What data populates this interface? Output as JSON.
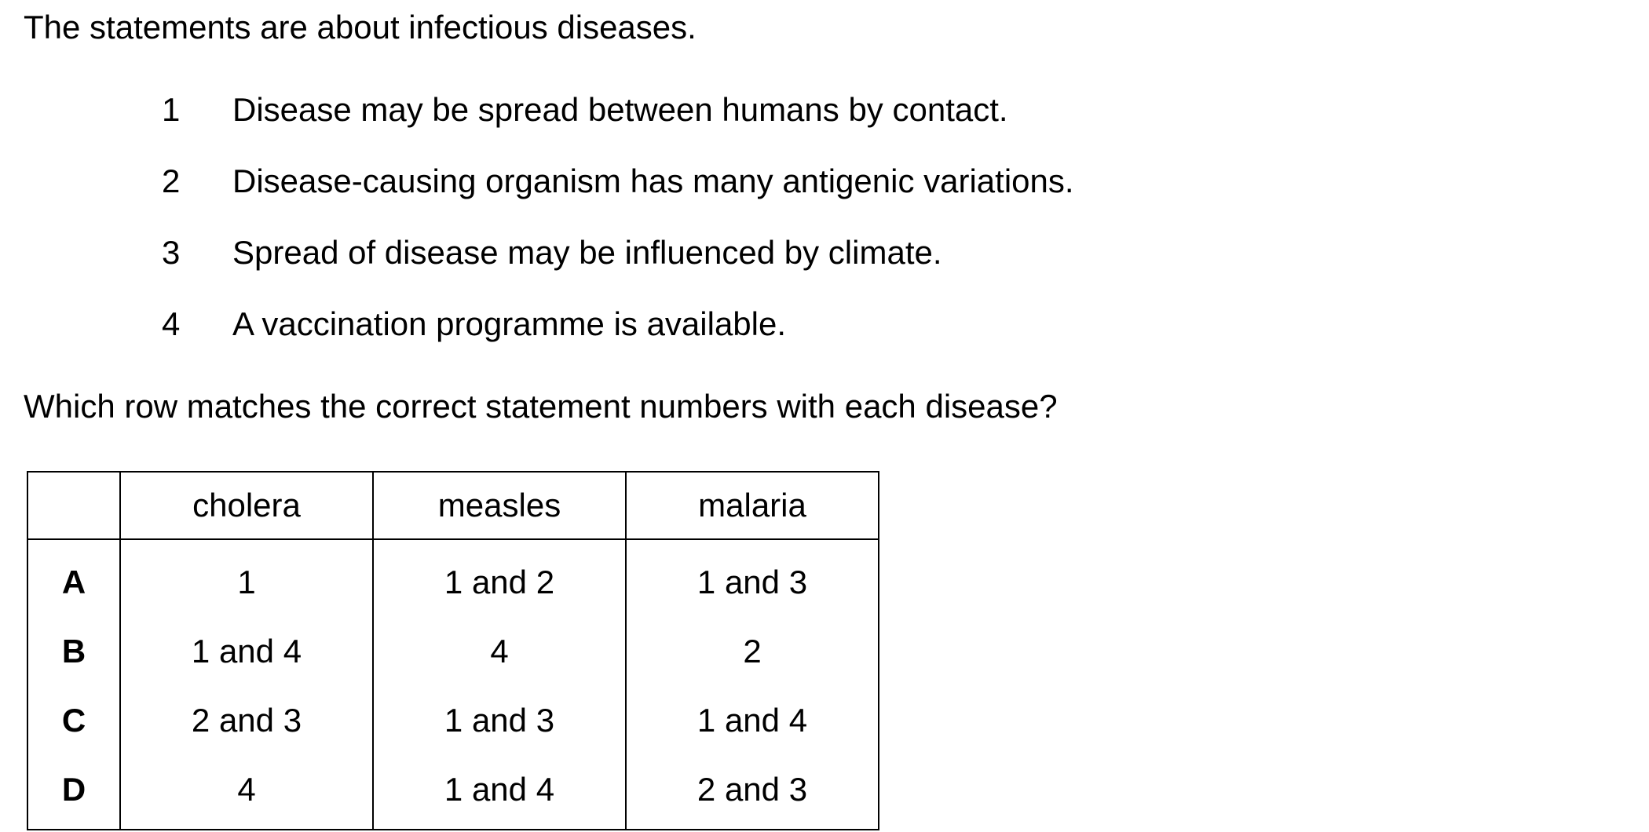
{
  "intro": "The statements are about infectious diseases.",
  "statements": [
    {
      "number": "1",
      "text": "Disease may be spread between humans by contact."
    },
    {
      "number": "2",
      "text": "Disease-causing organism has many antigenic variations."
    },
    {
      "number": "3",
      "text": "Spread of disease may be influenced by climate."
    },
    {
      "number": "4",
      "text": "A vaccination programme is available."
    }
  ],
  "question": "Which row matches the correct statement numbers with each disease?",
  "table": {
    "headers": [
      "",
      "cholera",
      "measles",
      "malaria"
    ],
    "rows": [
      {
        "letter": "A",
        "cholera": "1",
        "measles": "1 and 2",
        "malaria": "1 and 3"
      },
      {
        "letter": "B",
        "cholera": "1 and 4",
        "measles": "4",
        "malaria": "2"
      },
      {
        "letter": "C",
        "cholera": "2 and 3",
        "measles": "1 and 3",
        "malaria": "1 and 4"
      },
      {
        "letter": "D",
        "cholera": "4",
        "measles": "1 and 4",
        "malaria": "2 and 3"
      }
    ]
  }
}
